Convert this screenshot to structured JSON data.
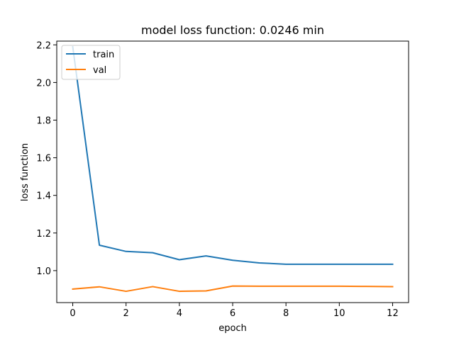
{
  "chart_data": {
    "type": "line",
    "title": "model loss function: 0.0246 min",
    "xlabel": "epoch",
    "ylabel": "loss function",
    "x": [
      0,
      1,
      2,
      3,
      4,
      5,
      6,
      7,
      8,
      9,
      10,
      11,
      12
    ],
    "xlim": [
      -0.6,
      12.6
    ],
    "ylim": [
      0.83,
      2.22
    ],
    "xticks": [
      0,
      2,
      4,
      6,
      8,
      10,
      12
    ],
    "yticks": [
      1.0,
      1.2,
      1.4,
      1.6,
      1.8,
      2.0,
      2.2
    ],
    "xtick_labels": [
      "0",
      "2",
      "4",
      "6",
      "8",
      "10",
      "12"
    ],
    "ytick_labels": [
      "1.0",
      "1.2",
      "1.4",
      "1.6",
      "1.8",
      "2.0",
      "2.2"
    ],
    "grid": false,
    "legend_position": "top-left",
    "series": [
      {
        "name": "train",
        "color": "#1f77b4",
        "values": [
          2.19,
          1.135,
          1.102,
          1.095,
          1.058,
          1.078,
          1.055,
          1.041,
          1.034,
          1.034,
          1.034,
          1.034,
          1.034
        ]
      },
      {
        "name": "val",
        "color": "#ff7f0e",
        "values": [
          0.902,
          0.914,
          0.89,
          0.915,
          0.89,
          0.892,
          0.918,
          0.917,
          0.917,
          0.917,
          0.917,
          0.916,
          0.915
        ]
      }
    ]
  }
}
